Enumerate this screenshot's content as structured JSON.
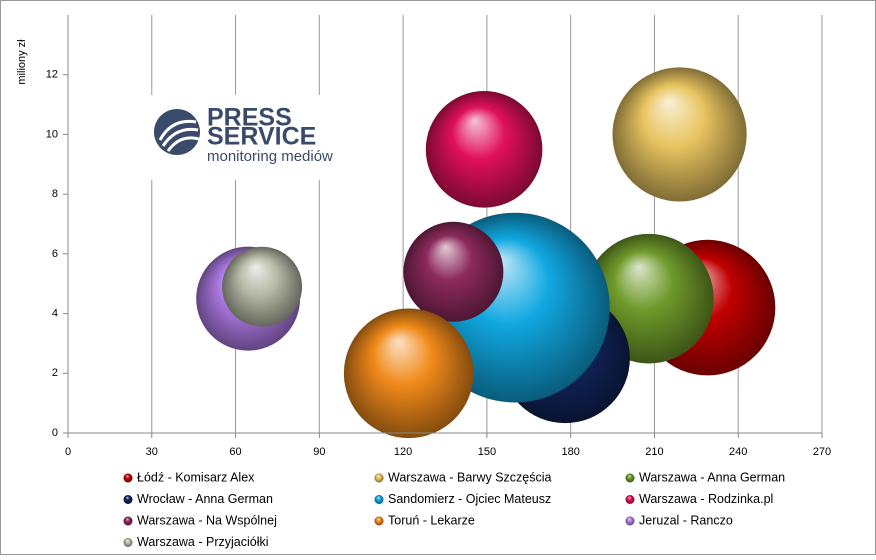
{
  "chart_data": {
    "type": "bubble",
    "y_label": "miliony zł",
    "logo": {
      "title_top": "PRESS",
      "title_bottom": "SERVICE",
      "subtitle": "monitoring mediów"
    },
    "xlim": [
      0,
      270
    ],
    "xticks": [
      0,
      30,
      60,
      90,
      120,
      150,
      180,
      210,
      240,
      270
    ],
    "ylim": [
      0,
      14
    ],
    "yticks": [
      0,
      2,
      4,
      6,
      8,
      10,
      12
    ],
    "grid": "x",
    "series": [
      {
        "name": "Łódź - Komisarz Alex",
        "color": "#c00000",
        "x": 229,
        "y": 4.2,
        "size": 46
      },
      {
        "name": "Warszawa - Barwy Szczęścia",
        "color": "#e8c560",
        "x": 219,
        "y": 10.0,
        "size": 45
      },
      {
        "name": "Warszawa - Anna German",
        "color": "#6f9a2a",
        "x": 208,
        "y": 4.5,
        "size": 42
      },
      {
        "name": "Wrocław - Anna German",
        "color": "#10245a",
        "x": 178,
        "y": 2.5,
        "size": 42
      },
      {
        "name": "Sandomierz - Ojciec Mateusz",
        "color": "#10a8e0",
        "x": 160,
        "y": 4.2,
        "size": 90
      },
      {
        "name": "Warszawa - Rodzinka.pl",
        "color": "#e0105a",
        "x": 149,
        "y": 9.5,
        "size": 34
      },
      {
        "name": "Warszawa - Na Wspólnej",
        "color": "#8c2a5c",
        "x": 138,
        "y": 5.4,
        "size": 25
      },
      {
        "name": "Toruń - Lekarze",
        "color": "#f08a1a",
        "x": 122,
        "y": 2.0,
        "size": 42
      },
      {
        "name": "Jeruzal - Ranczo",
        "color": "#b07ce8",
        "x": 64.5,
        "y": 4.5,
        "size": 27
      },
      {
        "name": "Warszawa - Przyjaciółki",
        "color": "#b8bca8",
        "x": 69.5,
        "y": 4.9,
        "size": 16
      }
    ]
  }
}
